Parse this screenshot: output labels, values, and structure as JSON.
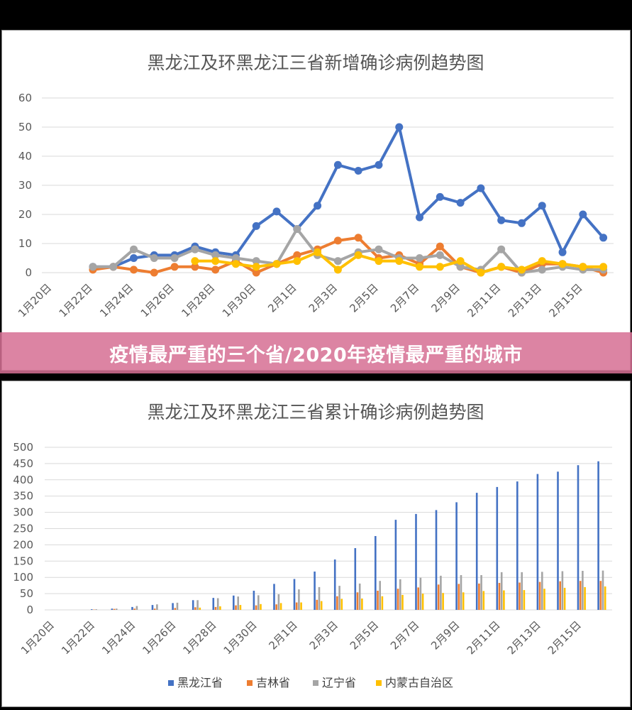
{
  "banner": {
    "text": "疫情最严重的三个省/2020年疫情最严重的城市"
  },
  "colors": {
    "s1": "#4472C4",
    "s2": "#ED7D31",
    "s3": "#A5A5A5",
    "s4": "#FFC000",
    "banner": "#D67094"
  },
  "chart_data": [
    {
      "type": "line",
      "title": "黑龙江及环黑龙江三省新增确诊病例趋势图",
      "ylim": [
        0,
        60
      ],
      "yticks": [
        0,
        10,
        20,
        30,
        40,
        50,
        60
      ],
      "grid": true,
      "categories": [
        "1月20日",
        "1月21日",
        "1月22日",
        "1月23日",
        "1月24日",
        "1月25日",
        "1月26日",
        "1月27日",
        "1月28日",
        "1月29日",
        "1月30日",
        "1月31日",
        "2月1日",
        "2月2日",
        "2月3日",
        "2月4日",
        "2月5日",
        "2月6日",
        "2月7日",
        "2月8日",
        "2月9日",
        "2月10日",
        "2月11日",
        "2月12日",
        "2月13日",
        "2月14日",
        "2月15日",
        "2月16日"
      ],
      "xtick_labels": [
        "1月20日",
        "1月22日",
        "1月24日",
        "1月26日",
        "1月28日",
        "1月30日",
        "2月1日",
        "2月3日",
        "2月5日",
        "2月7日",
        "2月9日",
        "2月11日",
        "2月13日",
        "2月15日"
      ],
      "series": [
        {
          "values": [
            null,
            null,
            2,
            2,
            5,
            6,
            6,
            9,
            7,
            6,
            16,
            21,
            15,
            23,
            37,
            35,
            37,
            50,
            19,
            26,
            24,
            29,
            18,
            17,
            23,
            7,
            20,
            12
          ]
        },
        {
          "values": [
            null,
            null,
            1,
            2,
            1,
            0,
            2,
            2,
            1,
            4,
            0,
            3,
            6,
            8,
            11,
            12,
            5,
            6,
            3,
            9,
            2,
            0,
            2,
            0,
            3,
            3,
            2,
            0
          ]
        },
        {
          "values": [
            null,
            null,
            2,
            2,
            8,
            5,
            5,
            8,
            6,
            5,
            4,
            3,
            15,
            6,
            4,
            7,
            8,
            5,
            5,
            6,
            2,
            1,
            8,
            0,
            1,
            2,
            1,
            1
          ]
        },
        {
          "values": [
            null,
            null,
            null,
            null,
            null,
            null,
            null,
            4,
            4,
            3,
            2,
            3,
            4,
            7,
            1,
            6,
            4,
            4,
            2,
            2,
            4,
            0,
            2,
            1,
            4,
            3,
            2,
            2
          ]
        }
      ]
    },
    {
      "type": "bar",
      "title": "黑龙江及环黑龙江三省累计确诊病例趋势图",
      "ylim": [
        0,
        500
      ],
      "yticks": [
        0,
        50,
        100,
        150,
        200,
        250,
        300,
        350,
        400,
        450,
        500
      ],
      "grid": true,
      "legend_position": "bottom",
      "categories": [
        "1月20日",
        "1月21日",
        "1月22日",
        "1月23日",
        "1月24日",
        "1月25日",
        "1月26日",
        "1月27日",
        "1月28日",
        "1月29日",
        "1月30日",
        "1月31日",
        "2月1日",
        "2月2日",
        "2月3日",
        "2月4日",
        "2月5日",
        "2月6日",
        "2月7日",
        "2月8日",
        "2月9日",
        "2月10日",
        "2月11日",
        "2月12日",
        "2月13日",
        "2月14日",
        "2月15日",
        "2月16日"
      ],
      "xtick_labels": [
        "1月20日",
        "1月22日",
        "1月24日",
        "1月26日",
        "1月28日",
        "1月30日",
        "2月1日",
        "2月3日",
        "2月5日",
        "2月7日",
        "2月9日",
        "2月11日",
        "2月13日",
        "2月15日"
      ],
      "series": [
        {
          "name": "黑龙江省",
          "values": [
            0,
            0,
            2,
            4,
            9,
            15,
            21,
            30,
            37,
            44,
            59,
            80,
            95,
            118,
            155,
            190,
            227,
            277,
            295,
            307,
            331,
            360,
            378,
            395,
            418,
            425,
            445,
            457
          ]
        },
        {
          "name": "吉林省",
          "values": [
            0,
            0,
            1,
            3,
            4,
            4,
            6,
            8,
            9,
            14,
            14,
            17,
            23,
            31,
            42,
            54,
            59,
            65,
            69,
            78,
            80,
            81,
            83,
            84,
            86,
            88,
            89,
            89
          ]
        },
        {
          "name": "辽宁省",
          "values": [
            0,
            0,
            2,
            4,
            12,
            17,
            22,
            30,
            36,
            41,
            45,
            48,
            63,
            70,
            74,
            81,
            89,
            94,
            99,
            105,
            107,
            107,
            116,
            116,
            117,
            119,
            120,
            121
          ]
        },
        {
          "name": "内蒙古自治区",
          "values": [
            0,
            0,
            0,
            0,
            0,
            0,
            0,
            7,
            11,
            15,
            18,
            21,
            23,
            27,
            34,
            35,
            42,
            46,
            50,
            52,
            54,
            58,
            60,
            61,
            65,
            68,
            70,
            72
          ]
        }
      ]
    }
  ]
}
